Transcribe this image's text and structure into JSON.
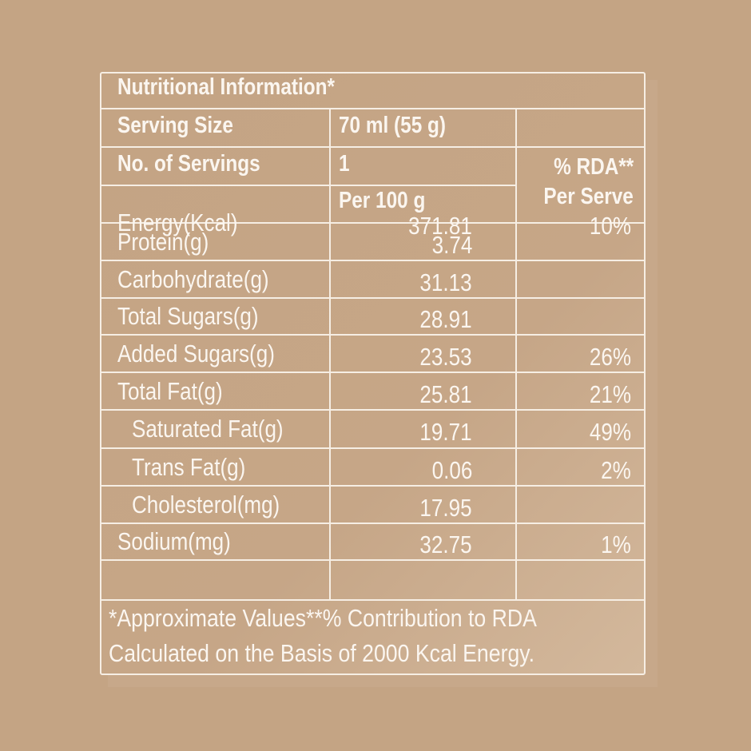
{
  "title": "Nutritional Information*",
  "serving_size": {
    "label": "Serving Size",
    "value": "70 ml (55 g)"
  },
  "servings": {
    "label": "No. of Servings",
    "value": "1"
  },
  "per_100g_label": "Per 100 g",
  "rda_header": {
    "line1": "% RDA**",
    "line2": "Per Serve"
  },
  "rows": [
    {
      "label": "Energy(Kcal)",
      "value": "371.81",
      "rda": "10%",
      "indent": false
    },
    {
      "label": "Protein(g)",
      "value": "3.74",
      "rda": "",
      "indent": false
    },
    {
      "label": "Carbohydrate(g)",
      "value": "31.13",
      "rda": "",
      "indent": false
    },
    {
      "label": "Total Sugars(g)",
      "value": "28.91",
      "rda": "",
      "indent": false
    },
    {
      "label": "Added Sugars(g)",
      "value": "23.53",
      "rda": "26%",
      "indent": false
    },
    {
      "label": "Total Fat(g)",
      "value": "25.81",
      "rda": "21%",
      "indent": false
    },
    {
      "label": "Saturated Fat(g)",
      "value": "19.71",
      "rda": "49%",
      "indent": true
    },
    {
      "label": "Trans Fat(g)",
      "value": "0.06",
      "rda": "2%",
      "indent": true
    },
    {
      "label": "Cholesterol(mg)",
      "value": "17.95",
      "rda": "",
      "indent": true
    },
    {
      "label": "Sodium(mg)",
      "value": "32.75",
      "rda": "1%",
      "indent": false
    }
  ],
  "footnote": {
    "line1": "*Approximate Values**% Contribution to RDA",
    "line2": "Calculated on the Basis of 2000 Kcal Energy."
  },
  "colors": {
    "background": "#c4a484",
    "lines": "#f6eee4",
    "text": "#fbf6f0"
  }
}
